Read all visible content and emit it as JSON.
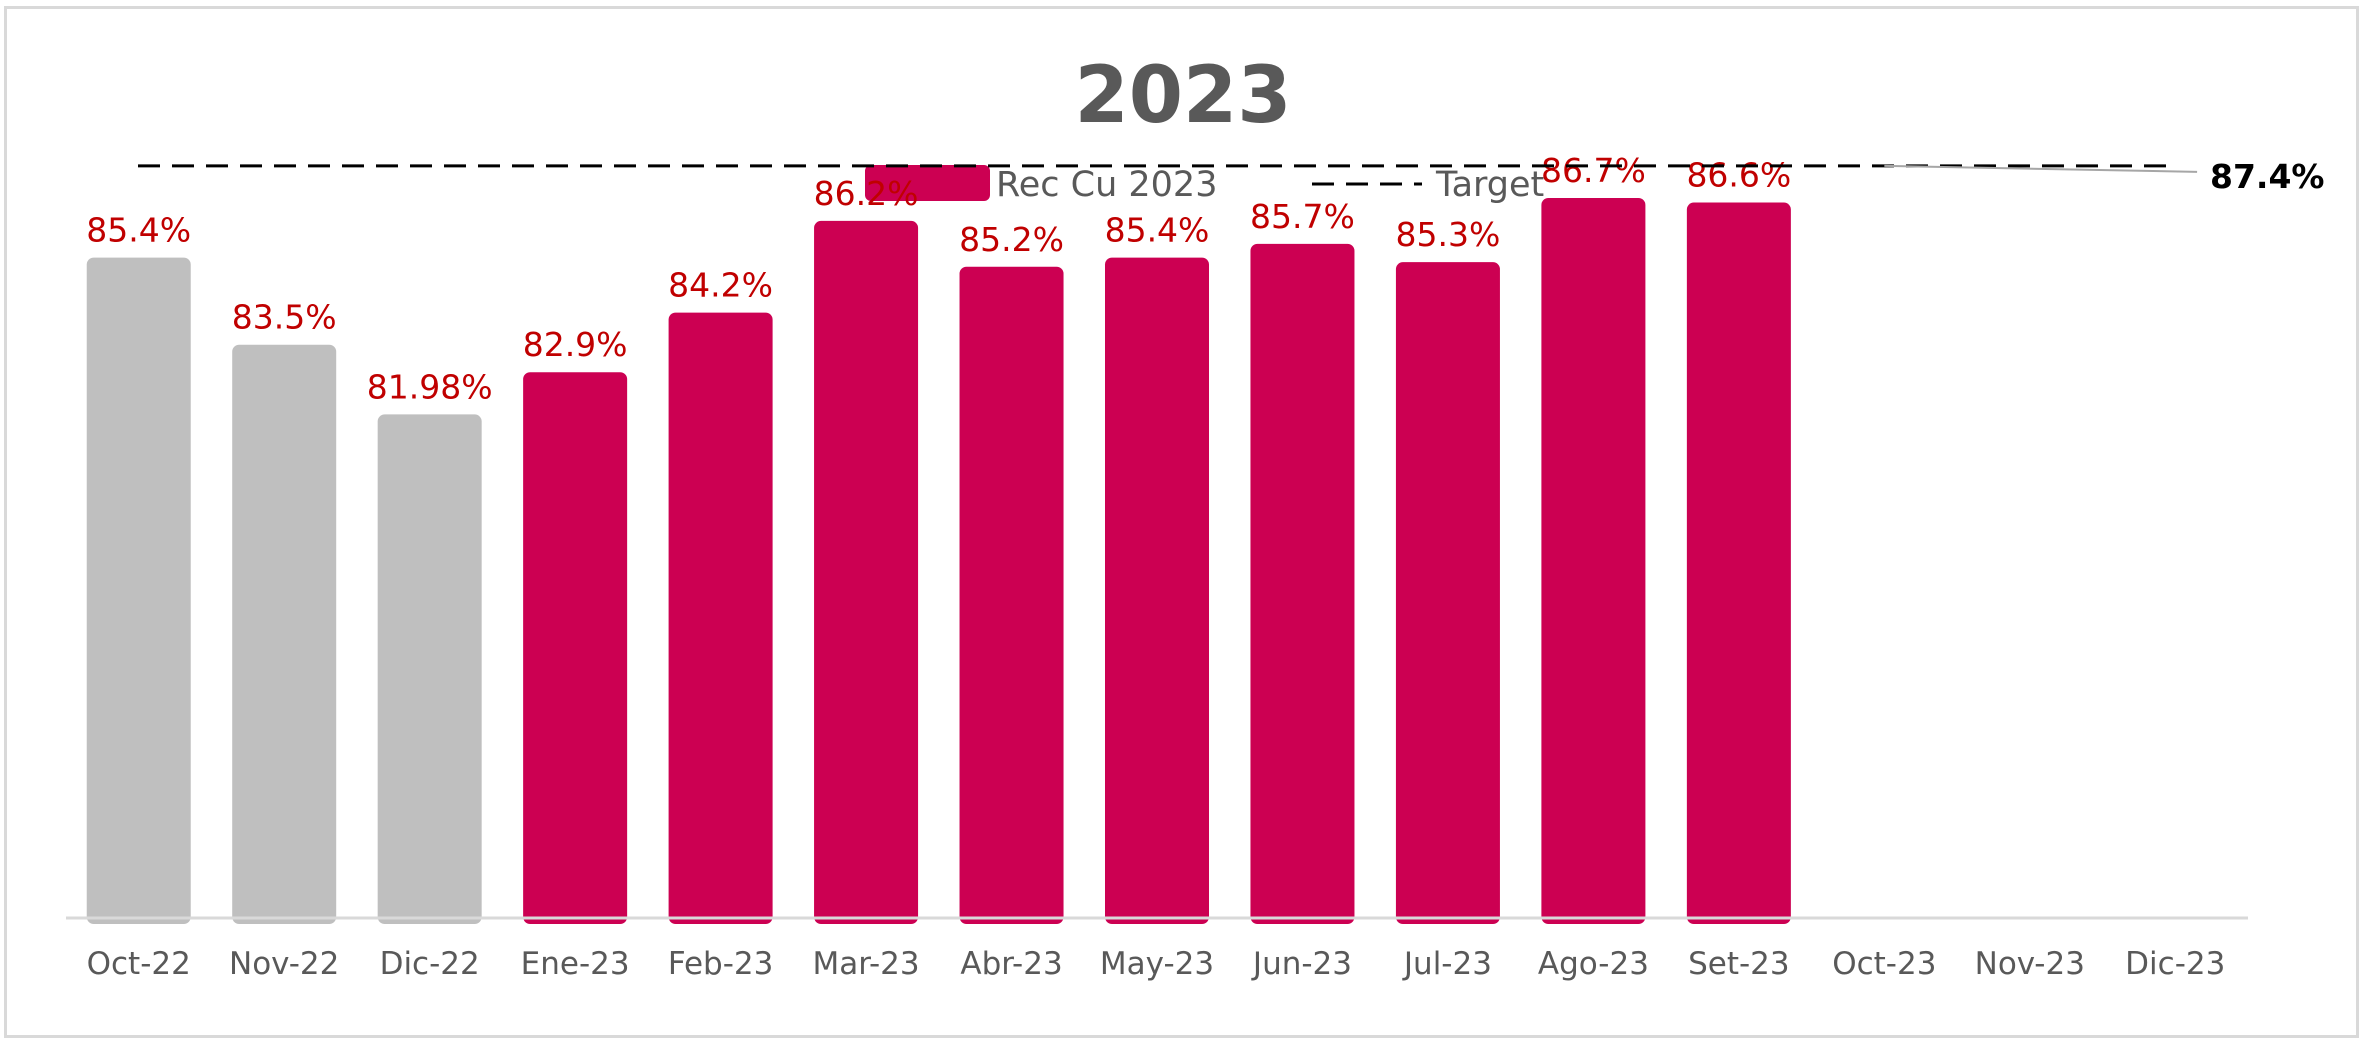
{
  "chart_data": {
    "type": "bar",
    "title": "2023",
    "xlabel": "",
    "ylabel": "",
    "categories": [
      "Oct-22",
      "Nov-22",
      "Dic-22",
      "Ene-23",
      "Feb-23",
      "Mar-23",
      "Abr-23",
      "May-23",
      "Jun-23",
      "Jul-23",
      "Ago-23",
      "Set-23",
      "Oct-23",
      "Nov-23",
      "Dic-23"
    ],
    "series": [
      {
        "name": "Rec Cu 2023",
        "values": [
          85.4,
          83.5,
          81.98,
          82.9,
          84.2,
          86.2,
          85.2,
          85.4,
          85.7,
          85.3,
          86.7,
          86.6,
          null,
          null,
          null
        ],
        "labels": [
          "85.4%",
          "83.5%",
          "81.98%",
          "82.9%",
          "84.2%",
          "86.2%",
          "85.2%",
          "85.4%",
          "85.7%",
          "85.3%",
          "86.7%",
          "86.6%",
          "",
          "",
          ""
        ],
        "previous_year_color": "#bfbfbf",
        "color": "#cc0052"
      },
      {
        "name": "Target",
        "style": "dashed-line",
        "value": 87.4,
        "label": "87.4%",
        "color": "#000000"
      }
    ],
    "gray_count": 3,
    "ylim": [
      71.0,
      88.4
    ],
    "grid": false,
    "legend_position": "top-center"
  }
}
